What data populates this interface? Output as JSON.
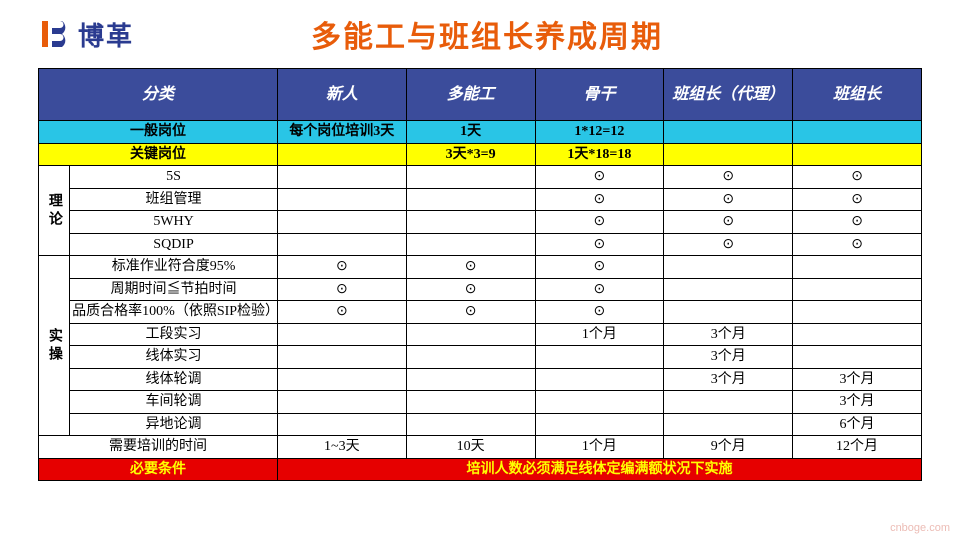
{
  "brand": {
    "name": "博革"
  },
  "page": {
    "title": "多能工与班组长养成周期"
  },
  "colors": {
    "title": "#e85c0a",
    "brand": "#2a3b90",
    "header_bg": "#3b4c9b",
    "header_fg": "#ffffff",
    "cyan": "#29c5e6",
    "yellow": "#ffff00",
    "red_bg": "#e60000",
    "red_fg": "#ffff00",
    "border": "#000000"
  },
  "table": {
    "headers": [
      "分类",
      "新人",
      "多能工",
      "骨干",
      "班组长（代理）",
      "班组长"
    ],
    "side_groups": [
      {
        "label": "理论",
        "span": 4
      },
      {
        "label": "实操",
        "span": 8
      }
    ],
    "row_general": {
      "label": "一般岗位",
      "cells": [
        "每个岗位培训3天",
        "1天",
        "1*12=12",
        "",
        ""
      ]
    },
    "row_key": {
      "label": "关键岗位",
      "cells": [
        "",
        "3天*3=9",
        "1天*18=18",
        "",
        ""
      ]
    },
    "theory_rows": [
      {
        "label": "5S",
        "cells": [
          "",
          "",
          "⊙",
          "⊙",
          "⊙"
        ]
      },
      {
        "label": "班组管理",
        "cells": [
          "",
          "",
          "⊙",
          "⊙",
          "⊙"
        ]
      },
      {
        "label": "5WHY",
        "cells": [
          "",
          "",
          "⊙",
          "⊙",
          "⊙"
        ]
      },
      {
        "label": "SQDIP",
        "cells": [
          "",
          "",
          "⊙",
          "⊙",
          "⊙"
        ]
      }
    ],
    "practice_rows": [
      {
        "label": "标准作业符合度95%",
        "cells": [
          "⊙",
          "⊙",
          "⊙",
          "",
          ""
        ]
      },
      {
        "label": "周期时间≦节拍时间",
        "cells": [
          "⊙",
          "⊙",
          "⊙",
          "",
          ""
        ]
      },
      {
        "label": "品质合格率100%（依照SIP检验）",
        "cells": [
          "⊙",
          "⊙",
          "⊙",
          "",
          ""
        ]
      },
      {
        "label": "工段实习",
        "cells": [
          "",
          "",
          "1个月",
          "3个月",
          ""
        ]
      },
      {
        "label": "线体实习",
        "cells": [
          "",
          "",
          "",
          "3个月",
          ""
        ]
      },
      {
        "label": "线体轮调",
        "cells": [
          "",
          "",
          "",
          "3个月",
          "3个月"
        ]
      },
      {
        "label": "车间轮调",
        "cells": [
          "",
          "",
          "",
          "",
          "3个月"
        ]
      },
      {
        "label": "异地论调",
        "cells": [
          "",
          "",
          "",
          "",
          "6个月"
        ]
      }
    ],
    "row_time": {
      "label": "需要培训的时间",
      "cells": [
        "1~3天",
        "10天",
        "1个月",
        "9个月",
        "12个月"
      ]
    },
    "row_req": {
      "label": "必要条件",
      "note": "培训人数必须满足线体定编满额状况下实施"
    }
  },
  "watermark": "cnboge.com"
}
